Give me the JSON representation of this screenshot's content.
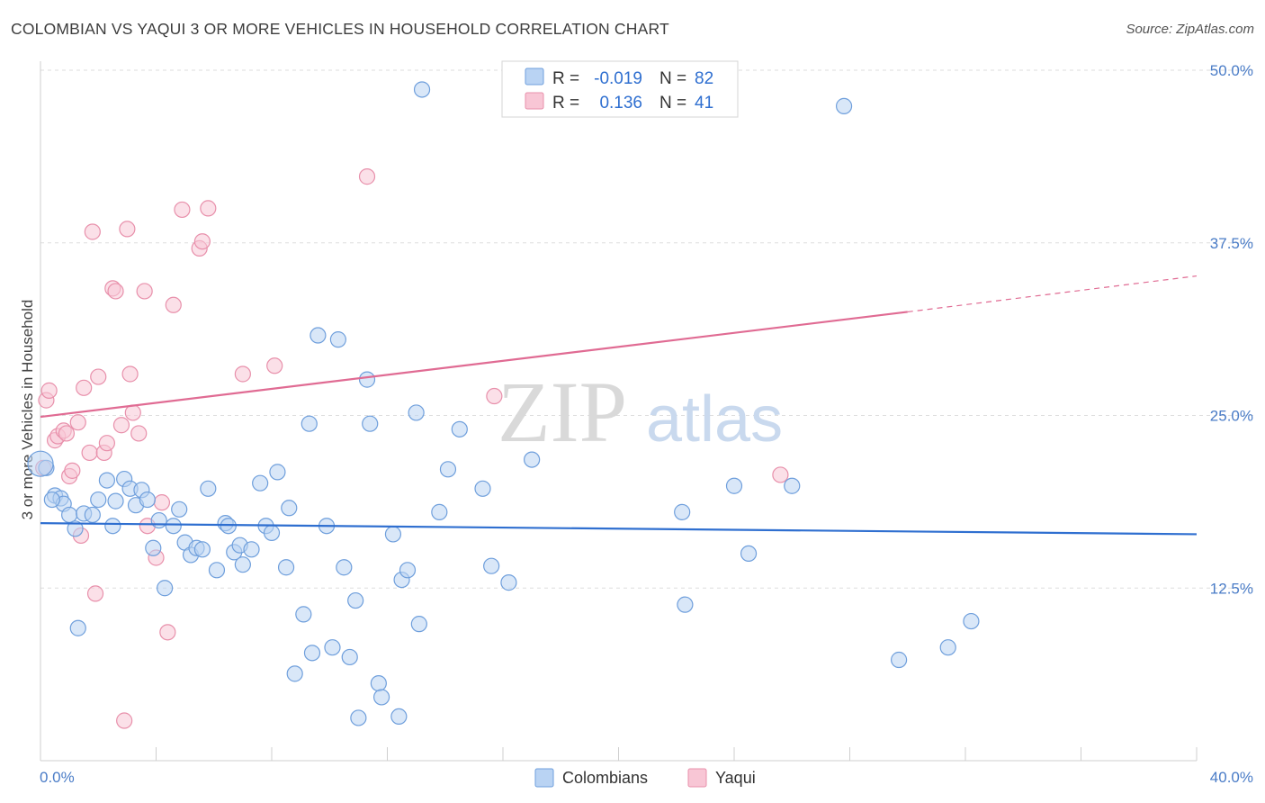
{
  "header": {
    "title": "COLOMBIAN VS YAQUI 3 OR MORE VEHICLES IN HOUSEHOLD CORRELATION CHART",
    "source": "Source: ZipAtlas.com"
  },
  "legend_box": {
    "rows": [
      {
        "r_label": "R =",
        "r_value": "-0.019",
        "n_label": "N =",
        "n_value": "82"
      },
      {
        "r_label": "R =",
        "r_value": "0.136",
        "n_label": "N =",
        "n_value": "41"
      }
    ]
  },
  "bottom_legend": [
    "Colombians",
    "Yaqui"
  ],
  "watermark": {
    "zip": "ZIP",
    "atlas": "atlas"
  },
  "colors": {
    "colombians_fill": "#b9d3f3",
    "colombians_stroke": "#6f9fdc",
    "colombians_line": "#2f6fd0",
    "yaqui_fill": "#f8c6d5",
    "yaqui_stroke": "#e890ab",
    "yaqui_line": "#e06b93",
    "grid": "#dddddd"
  },
  "chart_data": {
    "type": "scatter",
    "title": "COLOMBIAN VS YAQUI 3 OR MORE VEHICLES IN HOUSEHOLD CORRELATION CHART",
    "xlabel": "",
    "ylabel": "3 or more Vehicles in Household",
    "xlim": [
      0,
      40
    ],
    "ylim": [
      0,
      50
    ],
    "x_tick_labels": [
      "0.0%",
      "40.0%"
    ],
    "y_tick_labels": [
      "12.5%",
      "25.0%",
      "37.5%",
      "50.0%"
    ],
    "y_ticks": [
      12.5,
      25.0,
      37.5,
      50.0
    ],
    "grid": true,
    "legend_placement": "top-center",
    "series": [
      {
        "name": "Colombians",
        "r": -0.019,
        "n": 82,
        "trend": {
          "x": [
            0,
            40
          ],
          "y": [
            17.2,
            16.4
          ]
        },
        "points": [
          [
            0.2,
            21.2
          ],
          [
            0.5,
            19.2
          ],
          [
            0.7,
            19.0
          ],
          [
            0.8,
            18.6
          ],
          [
            1.0,
            17.8
          ],
          [
            1.2,
            16.8
          ],
          [
            1.3,
            9.6
          ],
          [
            1.5,
            17.9
          ],
          [
            1.8,
            17.8
          ],
          [
            2.0,
            18.9
          ],
          [
            2.3,
            20.3
          ],
          [
            2.5,
            17.0
          ],
          [
            2.6,
            18.8
          ],
          [
            2.9,
            20.4
          ],
          [
            3.1,
            19.7
          ],
          [
            3.3,
            18.5
          ],
          [
            3.5,
            19.6
          ],
          [
            3.7,
            18.9
          ],
          [
            3.9,
            15.4
          ],
          [
            4.1,
            17.4
          ],
          [
            4.3,
            12.5
          ],
          [
            4.6,
            17.0
          ],
          [
            4.8,
            18.2
          ],
          [
            5.0,
            15.8
          ],
          [
            5.2,
            14.9
          ],
          [
            5.4,
            15.4
          ],
          [
            5.6,
            15.3
          ],
          [
            5.8,
            19.7
          ],
          [
            6.1,
            13.8
          ],
          [
            6.4,
            17.2
          ],
          [
            6.5,
            17.0
          ],
          [
            6.7,
            15.1
          ],
          [
            6.9,
            15.6
          ],
          [
            7.0,
            14.2
          ],
          [
            7.3,
            15.3
          ],
          [
            7.6,
            20.1
          ],
          [
            7.8,
            17.0
          ],
          [
            8.0,
            16.5
          ],
          [
            8.2,
            20.9
          ],
          [
            8.5,
            14.0
          ],
          [
            8.6,
            18.3
          ],
          [
            8.8,
            6.3
          ],
          [
            9.1,
            10.6
          ],
          [
            9.3,
            24.4
          ],
          [
            9.4,
            7.8
          ],
          [
            9.6,
            30.8
          ],
          [
            9.9,
            17.0
          ],
          [
            10.1,
            8.2
          ],
          [
            10.3,
            30.5
          ],
          [
            10.5,
            14.0
          ],
          [
            10.7,
            7.5
          ],
          [
            10.9,
            11.6
          ],
          [
            11.0,
            3.1
          ],
          [
            11.3,
            27.6
          ],
          [
            11.4,
            24.4
          ],
          [
            11.7,
            5.6
          ],
          [
            11.8,
            4.6
          ],
          [
            12.2,
            16.4
          ],
          [
            12.4,
            3.2
          ],
          [
            12.5,
            13.1
          ],
          [
            12.7,
            13.8
          ],
          [
            13.0,
            25.2
          ],
          [
            13.1,
            9.9
          ],
          [
            13.2,
            48.6
          ],
          [
            13.8,
            18.0
          ],
          [
            14.1,
            21.1
          ],
          [
            14.5,
            24.0
          ],
          [
            15.3,
            19.7
          ],
          [
            15.6,
            14.1
          ],
          [
            16.2,
            12.9
          ],
          [
            17.0,
            21.8
          ],
          [
            22.2,
            18.0
          ],
          [
            22.3,
            11.3
          ],
          [
            24.0,
            19.9
          ],
          [
            24.5,
            15.0
          ],
          [
            26.0,
            19.9
          ],
          [
            27.8,
            47.4
          ],
          [
            29.7,
            7.3
          ],
          [
            31.4,
            8.2
          ],
          [
            32.2,
            10.1
          ],
          [
            0.0,
            21.5
          ],
          [
            0.4,
            18.9
          ]
        ]
      },
      {
        "name": "Yaqui",
        "r": 0.136,
        "n": 41,
        "trend": {
          "x": [
            0,
            30
          ],
          "y": [
            24.9,
            32.5
          ]
        },
        "trend_dashed": {
          "x": [
            30,
            40
          ],
          "y": [
            32.5,
            35.1
          ]
        },
        "points": [
          [
            0.1,
            21.2
          ],
          [
            0.2,
            26.1
          ],
          [
            0.3,
            26.8
          ],
          [
            0.5,
            23.2
          ],
          [
            0.6,
            23.5
          ],
          [
            0.8,
            23.9
          ],
          [
            0.9,
            23.7
          ],
          [
            1.0,
            20.6
          ],
          [
            1.1,
            21.0
          ],
          [
            1.3,
            24.5
          ],
          [
            1.4,
            16.3
          ],
          [
            1.5,
            27.0
          ],
          [
            1.7,
            22.3
          ],
          [
            1.8,
            38.3
          ],
          [
            1.9,
            12.1
          ],
          [
            2.0,
            27.8
          ],
          [
            2.2,
            22.3
          ],
          [
            2.3,
            23.0
          ],
          [
            2.5,
            34.2
          ],
          [
            2.6,
            34.0
          ],
          [
            2.8,
            24.3
          ],
          [
            2.9,
            2.9
          ],
          [
            3.0,
            38.5
          ],
          [
            3.1,
            28.0
          ],
          [
            3.2,
            25.2
          ],
          [
            3.4,
            23.7
          ],
          [
            3.6,
            34.0
          ],
          [
            3.7,
            17.0
          ],
          [
            4.0,
            14.7
          ],
          [
            4.2,
            18.7
          ],
          [
            4.4,
            9.3
          ],
          [
            4.6,
            33.0
          ],
          [
            4.9,
            39.9
          ],
          [
            5.5,
            37.1
          ],
          [
            5.6,
            37.6
          ],
          [
            5.8,
            40.0
          ],
          [
            7.0,
            28.0
          ],
          [
            8.1,
            28.6
          ],
          [
            11.3,
            42.3
          ],
          [
            15.7,
            26.4
          ],
          [
            25.6,
            20.7
          ]
        ]
      }
    ]
  }
}
